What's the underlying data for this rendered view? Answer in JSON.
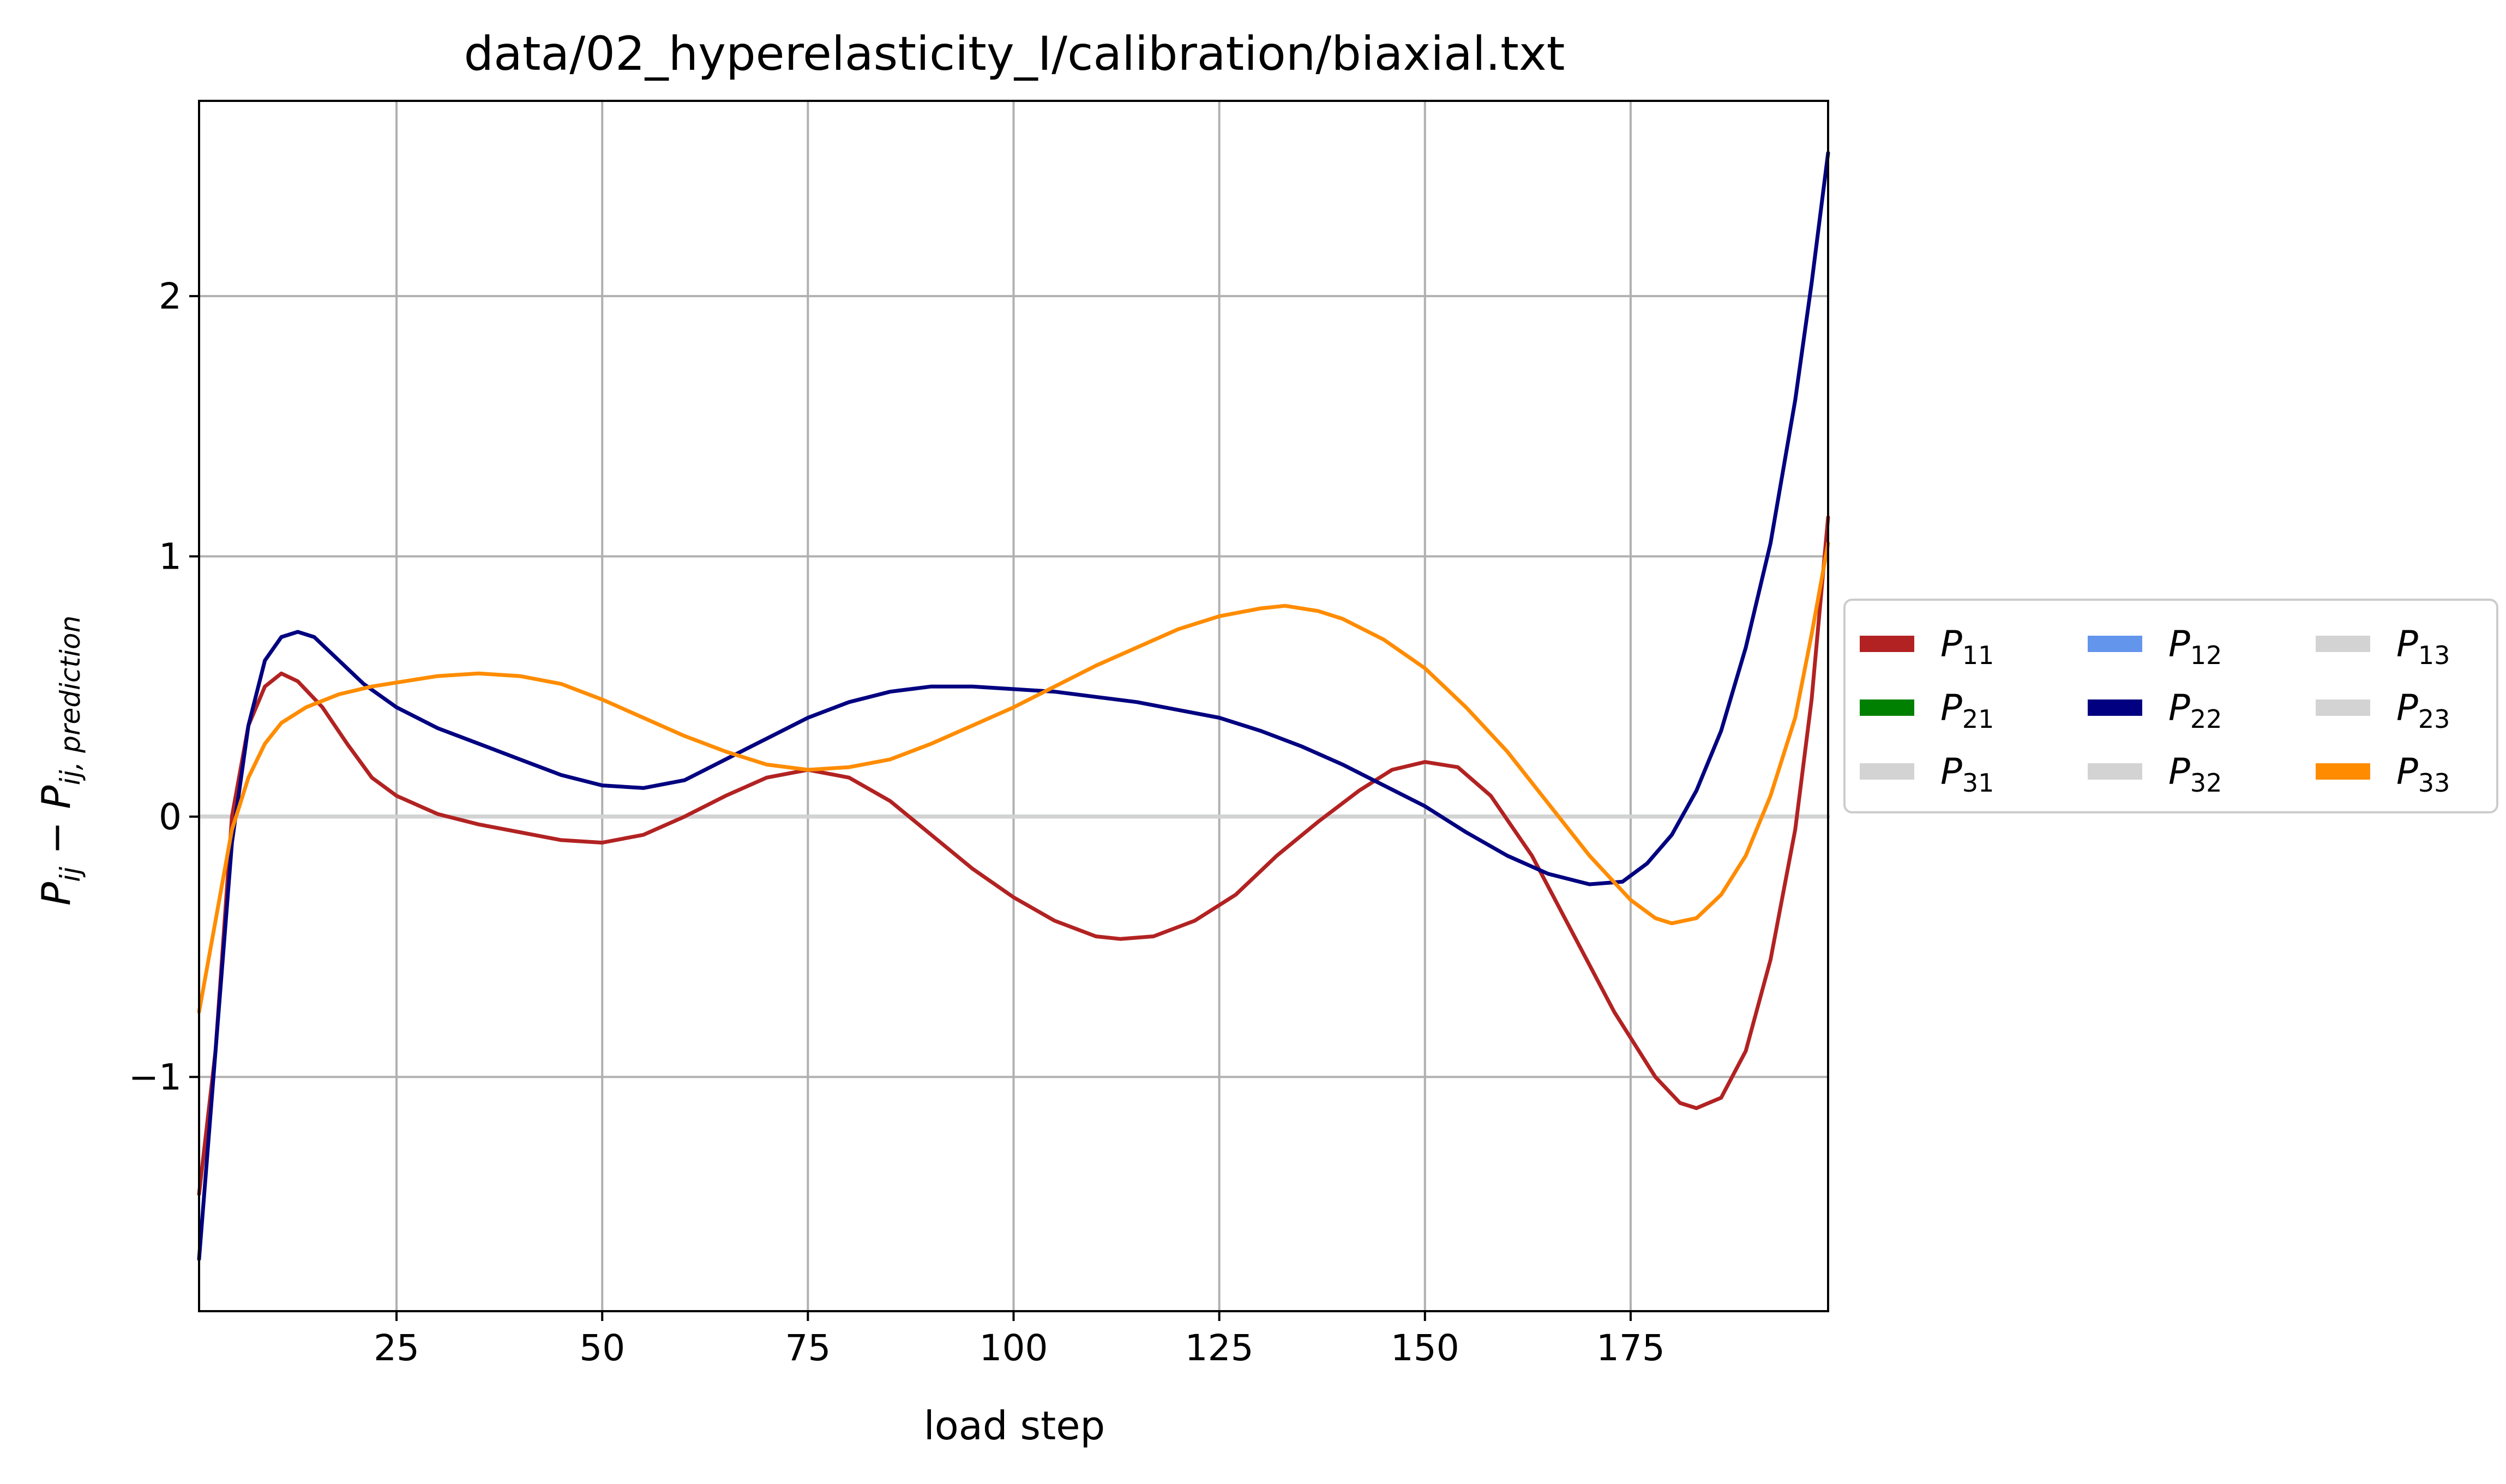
{
  "chart_data": {
    "type": "line",
    "title": "data/02_hyperelasticity_I/calibration/biaxial.txt",
    "xlabel": "load step",
    "ylabel": {
      "main": "P",
      "sub1": "ij",
      "minus": " − ",
      "main2": "P",
      "sub2": "ij, prediction"
    },
    "xlim": [
      1,
      199
    ],
    "ylim": [
      -1.9,
      2.75
    ],
    "xticks": [
      25,
      50,
      75,
      100,
      125,
      150,
      175
    ],
    "yticks": [
      -1,
      0,
      1,
      2
    ],
    "ytick_labels": [
      "−1",
      "0",
      "1",
      "2"
    ],
    "grid": true,
    "legend_position": "center-right-outside",
    "legend_columns": 3,
    "series": [
      {
        "name": "P",
        "sub": "11",
        "color": "#b22222",
        "points": [
          [
            1,
            -1.45
          ],
          [
            3,
            -0.9
          ],
          [
            5,
            0.0
          ],
          [
            7,
            0.35
          ],
          [
            9,
            0.5
          ],
          [
            11,
            0.55
          ],
          [
            13,
            0.52
          ],
          [
            16,
            0.42
          ],
          [
            19,
            0.28
          ],
          [
            22,
            0.15
          ],
          [
            25,
            0.08
          ],
          [
            30,
            0.01
          ],
          [
            35,
            -0.03
          ],
          [
            40,
            -0.06
          ],
          [
            45,
            -0.09
          ],
          [
            50,
            -0.1
          ],
          [
            55,
            -0.07
          ],
          [
            60,
            0.0
          ],
          [
            65,
            0.08
          ],
          [
            70,
            0.15
          ],
          [
            75,
            0.18
          ],
          [
            80,
            0.15
          ],
          [
            85,
            0.06
          ],
          [
            90,
            -0.07
          ],
          [
            95,
            -0.2
          ],
          [
            100,
            -0.31
          ],
          [
            105,
            -0.4
          ],
          [
            110,
            -0.46
          ],
          [
            113,
            -0.47
          ],
          [
            117,
            -0.46
          ],
          [
            122,
            -0.4
          ],
          [
            127,
            -0.3
          ],
          [
            132,
            -0.15
          ],
          [
            137,
            -0.02
          ],
          [
            142,
            0.1
          ],
          [
            146,
            0.18
          ],
          [
            150,
            0.21
          ],
          [
            154,
            0.19
          ],
          [
            158,
            0.08
          ],
          [
            163,
            -0.15
          ],
          [
            168,
            -0.45
          ],
          [
            173,
            -0.75
          ],
          [
            178,
            -1.0
          ],
          [
            181,
            -1.1
          ],
          [
            183,
            -1.12
          ],
          [
            186,
            -1.08
          ],
          [
            189,
            -0.9
          ],
          [
            192,
            -0.55
          ],
          [
            195,
            -0.05
          ],
          [
            197,
            0.45
          ],
          [
            199,
            1.15
          ]
        ]
      },
      {
        "name": "P",
        "sub": "21",
        "color": "#008000",
        "points": [
          [
            1,
            0
          ],
          [
            199,
            0
          ]
        ]
      },
      {
        "name": "P",
        "sub": "31",
        "color": "#d3d3d3",
        "points": [
          [
            1,
            0
          ],
          [
            199,
            0
          ]
        ]
      },
      {
        "name": "P",
        "sub": "12",
        "color": "#6495ed",
        "points": [
          [
            1,
            0
          ],
          [
            199,
            0
          ]
        ]
      },
      {
        "name": "P",
        "sub": "22",
        "color": "#000080",
        "points": [
          [
            1,
            -1.7
          ],
          [
            3,
            -0.9
          ],
          [
            5,
            -0.1
          ],
          [
            7,
            0.35
          ],
          [
            9,
            0.6
          ],
          [
            11,
            0.69
          ],
          [
            13,
            0.71
          ],
          [
            15,
            0.69
          ],
          [
            18,
            0.6
          ],
          [
            21,
            0.51
          ],
          [
            25,
            0.42
          ],
          [
            30,
            0.34
          ],
          [
            35,
            0.28
          ],
          [
            40,
            0.22
          ],
          [
            45,
            0.16
          ],
          [
            50,
            0.12
          ],
          [
            55,
            0.11
          ],
          [
            60,
            0.14
          ],
          [
            65,
            0.22
          ],
          [
            70,
            0.3
          ],
          [
            75,
            0.38
          ],
          [
            80,
            0.44
          ],
          [
            85,
            0.48
          ],
          [
            90,
            0.5
          ],
          [
            95,
            0.5
          ],
          [
            100,
            0.49
          ],
          [
            105,
            0.48
          ],
          [
            110,
            0.46
          ],
          [
            115,
            0.44
          ],
          [
            120,
            0.41
          ],
          [
            125,
            0.38
          ],
          [
            130,
            0.33
          ],
          [
            135,
            0.27
          ],
          [
            140,
            0.2
          ],
          [
            145,
            0.12
          ],
          [
            150,
            0.04
          ],
          [
            155,
            -0.06
          ],
          [
            160,
            -0.15
          ],
          [
            165,
            -0.22
          ],
          [
            170,
            -0.26
          ],
          [
            174,
            -0.25
          ],
          [
            177,
            -0.18
          ],
          [
            180,
            -0.07
          ],
          [
            183,
            0.1
          ],
          [
            186,
            0.33
          ],
          [
            189,
            0.65
          ],
          [
            192,
            1.05
          ],
          [
            195,
            1.6
          ],
          [
            197,
            2.05
          ],
          [
            199,
            2.55
          ]
        ]
      },
      {
        "name": "P",
        "sub": "32",
        "color": "#d3d3d3",
        "points": [
          [
            1,
            0
          ],
          [
            199,
            0
          ]
        ]
      },
      {
        "name": "P",
        "sub": "13",
        "color": "#d3d3d3",
        "points": [
          [
            1,
            0
          ],
          [
            199,
            0
          ]
        ]
      },
      {
        "name": "P",
        "sub": "23",
        "color": "#d3d3d3",
        "points": [
          [
            1,
            0
          ],
          [
            199,
            0
          ]
        ]
      },
      {
        "name": "P",
        "sub": "33",
        "color": "#ff8c00",
        "points": [
          [
            1,
            -0.75
          ],
          [
            3,
            -0.4
          ],
          [
            5,
            -0.05
          ],
          [
            7,
            0.15
          ],
          [
            9,
            0.28
          ],
          [
            11,
            0.36
          ],
          [
            14,
            0.42
          ],
          [
            18,
            0.47
          ],
          [
            22,
            0.5
          ],
          [
            26,
            0.52
          ],
          [
            30,
            0.54
          ],
          [
            35,
            0.55
          ],
          [
            40,
            0.54
          ],
          [
            45,
            0.51
          ],
          [
            50,
            0.45
          ],
          [
            55,
            0.38
          ],
          [
            60,
            0.31
          ],
          [
            65,
            0.25
          ],
          [
            70,
            0.2
          ],
          [
            75,
            0.18
          ],
          [
            80,
            0.19
          ],
          [
            85,
            0.22
          ],
          [
            90,
            0.28
          ],
          [
            95,
            0.35
          ],
          [
            100,
            0.42
          ],
          [
            105,
            0.5
          ],
          [
            110,
            0.58
          ],
          [
            115,
            0.65
          ],
          [
            120,
            0.72
          ],
          [
            125,
            0.77
          ],
          [
            130,
            0.8
          ],
          [
            133,
            0.81
          ],
          [
            137,
            0.79
          ],
          [
            140,
            0.76
          ],
          [
            145,
            0.68
          ],
          [
            150,
            0.57
          ],
          [
            155,
            0.42
          ],
          [
            160,
            0.25
          ],
          [
            165,
            0.05
          ],
          [
            170,
            -0.15
          ],
          [
            175,
            -0.32
          ],
          [
            178,
            -0.39
          ],
          [
            180,
            -0.41
          ],
          [
            183,
            -0.39
          ],
          [
            186,
            -0.3
          ],
          [
            189,
            -0.15
          ],
          [
            192,
            0.08
          ],
          [
            195,
            0.38
          ],
          [
            197,
            0.7
          ],
          [
            199,
            1.05
          ]
        ]
      }
    ]
  }
}
